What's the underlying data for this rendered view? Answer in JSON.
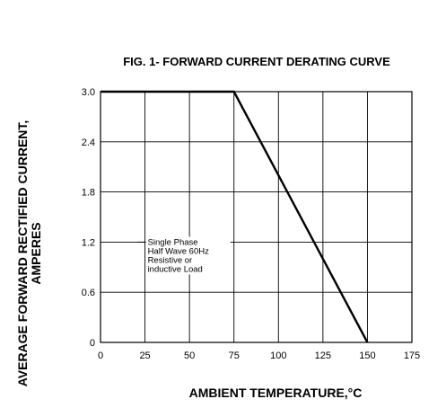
{
  "chart_data": {
    "type": "line",
    "title": "FIG. 1- FORWARD CURRENT DERATING CURVE",
    "xlabel": "AMBIENT TEMPERATURE,°C",
    "ylabel_lines": [
      "AVERAGE FORWARD RECTIFIED CURRENT,",
      "AMPERES"
    ],
    "xlim": [
      0,
      175
    ],
    "ylim": [
      0,
      3.0
    ],
    "x_ticks": [
      "0",
      "25",
      "50",
      "75",
      "100",
      "125",
      "150",
      "175"
    ],
    "y_ticks": [
      "0",
      "0.6",
      "1.2",
      "1.8",
      "2.4",
      "3.0"
    ],
    "grid": true,
    "series": [
      {
        "x": [
          0,
          75,
          150
        ],
        "y": [
          3.0,
          3.0,
          0
        ]
      }
    ],
    "annotation": [
      "Single Phase",
      "Half Wave 60Hz",
      "Resistive or",
      "inductive Load"
    ]
  }
}
